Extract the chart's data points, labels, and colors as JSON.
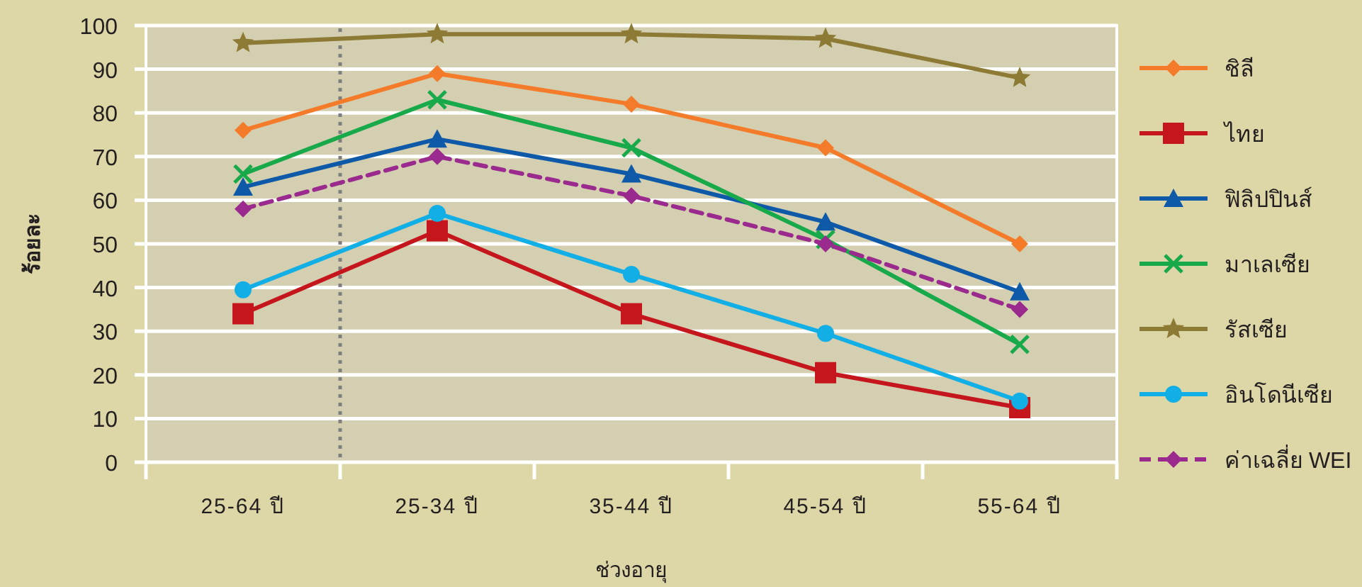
{
  "chart_data": {
    "type": "line",
    "xlabel": "ช่วงอายุ",
    "ylabel": "ร้อยละ",
    "categories": [
      "25-64 ปี",
      "25-34 ปี",
      "35-44 ปี",
      "45-54 ปี",
      "55-64 ปี"
    ],
    "series": [
      {
        "name": "ชิลี",
        "color": "#f47b2a",
        "marker": "diamond",
        "values": [
          76,
          89,
          82,
          72,
          50
        ]
      },
      {
        "name": "ไทย",
        "color": "#c4161c",
        "marker": "square",
        "values": [
          34,
          53,
          34,
          20.5,
          12.5
        ]
      },
      {
        "name": "ฟิลิปปินส์",
        "color": "#0f5aa8",
        "marker": "triangle",
        "values": [
          63,
          74,
          66,
          55,
          39
        ]
      },
      {
        "name": "มาเลเซีย",
        "color": "#17a94a",
        "marker": "cross",
        "values": [
          66,
          83,
          72,
          51,
          27
        ]
      },
      {
        "name": "รัสเซีย",
        "color": "#8c7a35",
        "marker": "star",
        "values": [
          96,
          98,
          98,
          97,
          88
        ]
      },
      {
        "name": "อินโดนีเซีย",
        "color": "#12aee6",
        "marker": "circle",
        "values": [
          39.5,
          57,
          43,
          29.5,
          14
        ]
      },
      {
        "name": "ค่าเฉลี่ย WEI",
        "color": "#9b2a8e",
        "marker": "diamond",
        "line_style": "dashed",
        "values": [
          58,
          70,
          61,
          50,
          35
        ]
      }
    ],
    "ylim": [
      0,
      100
    ],
    "yticks": [
      0,
      10,
      20,
      30,
      40,
      50,
      60,
      70,
      80,
      90,
      100
    ],
    "grid": "y",
    "legend": "right"
  }
}
